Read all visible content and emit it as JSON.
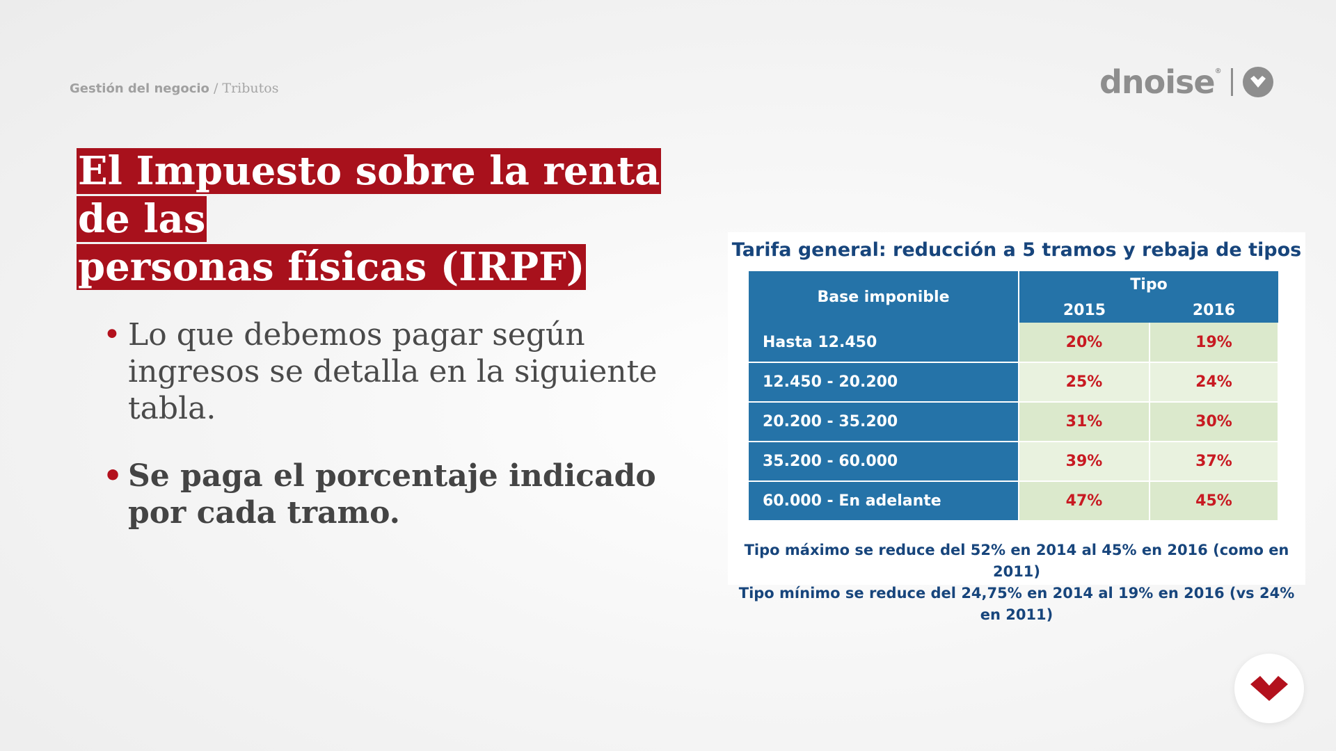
{
  "breadcrumb": {
    "section": "Gestión del negocio",
    "separator": " / ",
    "topic": "Tributos"
  },
  "brand": {
    "name": "dnoise",
    "registered": "®"
  },
  "title": {
    "line1": "El Impuesto sobre la renta de las",
    "line2": "personas físicas (IRPF)"
  },
  "bullets": [
    "Lo que debemos pagar según ingresos se detalla en la siguiente tabla.",
    "Se paga el porcentaje indicado por cada tramo."
  ],
  "table_card": {
    "title": "Tarifa general: reducción a 5 tramos y rebaja de tipos",
    "header": {
      "base": "Base imponible",
      "group": "Tipo",
      "year1": "2015",
      "year2": "2016"
    },
    "rows": [
      {
        "base": "Hasta 12.450",
        "y2015": "20%",
        "y2016": "19%"
      },
      {
        "base": "12.450  -  20.200",
        "y2015": "25%",
        "y2016": "24%"
      },
      {
        "base": "20.200  -  35.200",
        "y2015": "31%",
        "y2016": "30%"
      },
      {
        "base": "35.200  -  60.000",
        "y2015": "39%",
        "y2016": "37%"
      },
      {
        "base": "60.000  -  En adelante",
        "y2015": "47%",
        "y2016": "45%"
      }
    ],
    "notes": [
      "Tipo máximo se reduce del 52% en 2014 al 45% en 2016 (como en 2011)",
      "Tipo mínimo se reduce del 24,75% en 2014 al 19% en 2016 (vs 24% en 2011)"
    ]
  },
  "colors": {
    "accent": "#a8111c",
    "table_blue": "#2573a8",
    "rate_red": "#c81a22",
    "navy_text": "#17457c"
  },
  "icons": {
    "brand_badge": "heart-badge-icon",
    "fab": "heart-icon"
  }
}
